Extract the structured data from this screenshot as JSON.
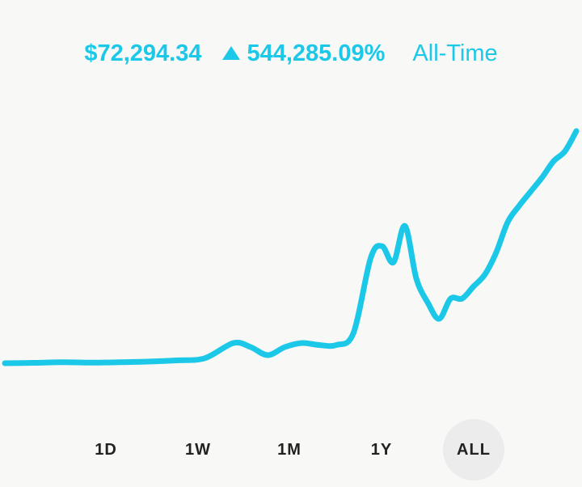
{
  "header": {
    "value": "$72,294.34",
    "change_percent": "544,285.09%",
    "period": "All-Time",
    "trend_icon": "triangle-up-icon",
    "accent_color": "#1cc8e8"
  },
  "chart_data": {
    "type": "line",
    "title": "",
    "xlabel": "",
    "ylabel": "",
    "grid": false,
    "legend": "none",
    "x": [
      0,
      5,
      10,
      15,
      20,
      25,
      30,
      35,
      40,
      43,
      46,
      49,
      52,
      55,
      58,
      61,
      64,
      66,
      68,
      70,
      72,
      74,
      76,
      78,
      80,
      82,
      84,
      86,
      88,
      90,
      92,
      94,
      96,
      98,
      100
    ],
    "y": [
      0,
      0.2,
      0.5,
      0.3,
      0.5,
      0.8,
      1.4,
      2.5,
      10,
      8,
      4,
      8,
      10,
      9,
      9,
      15,
      52,
      58,
      50,
      68,
      42,
      30,
      22,
      32,
      32,
      38,
      44,
      55,
      70,
      78,
      85,
      92,
      100,
      105,
      115
    ],
    "color": "#1cc8e8"
  },
  "ranges": {
    "items": [
      "1D",
      "1W",
      "1M",
      "1Y",
      "ALL"
    ],
    "selected": "ALL"
  }
}
